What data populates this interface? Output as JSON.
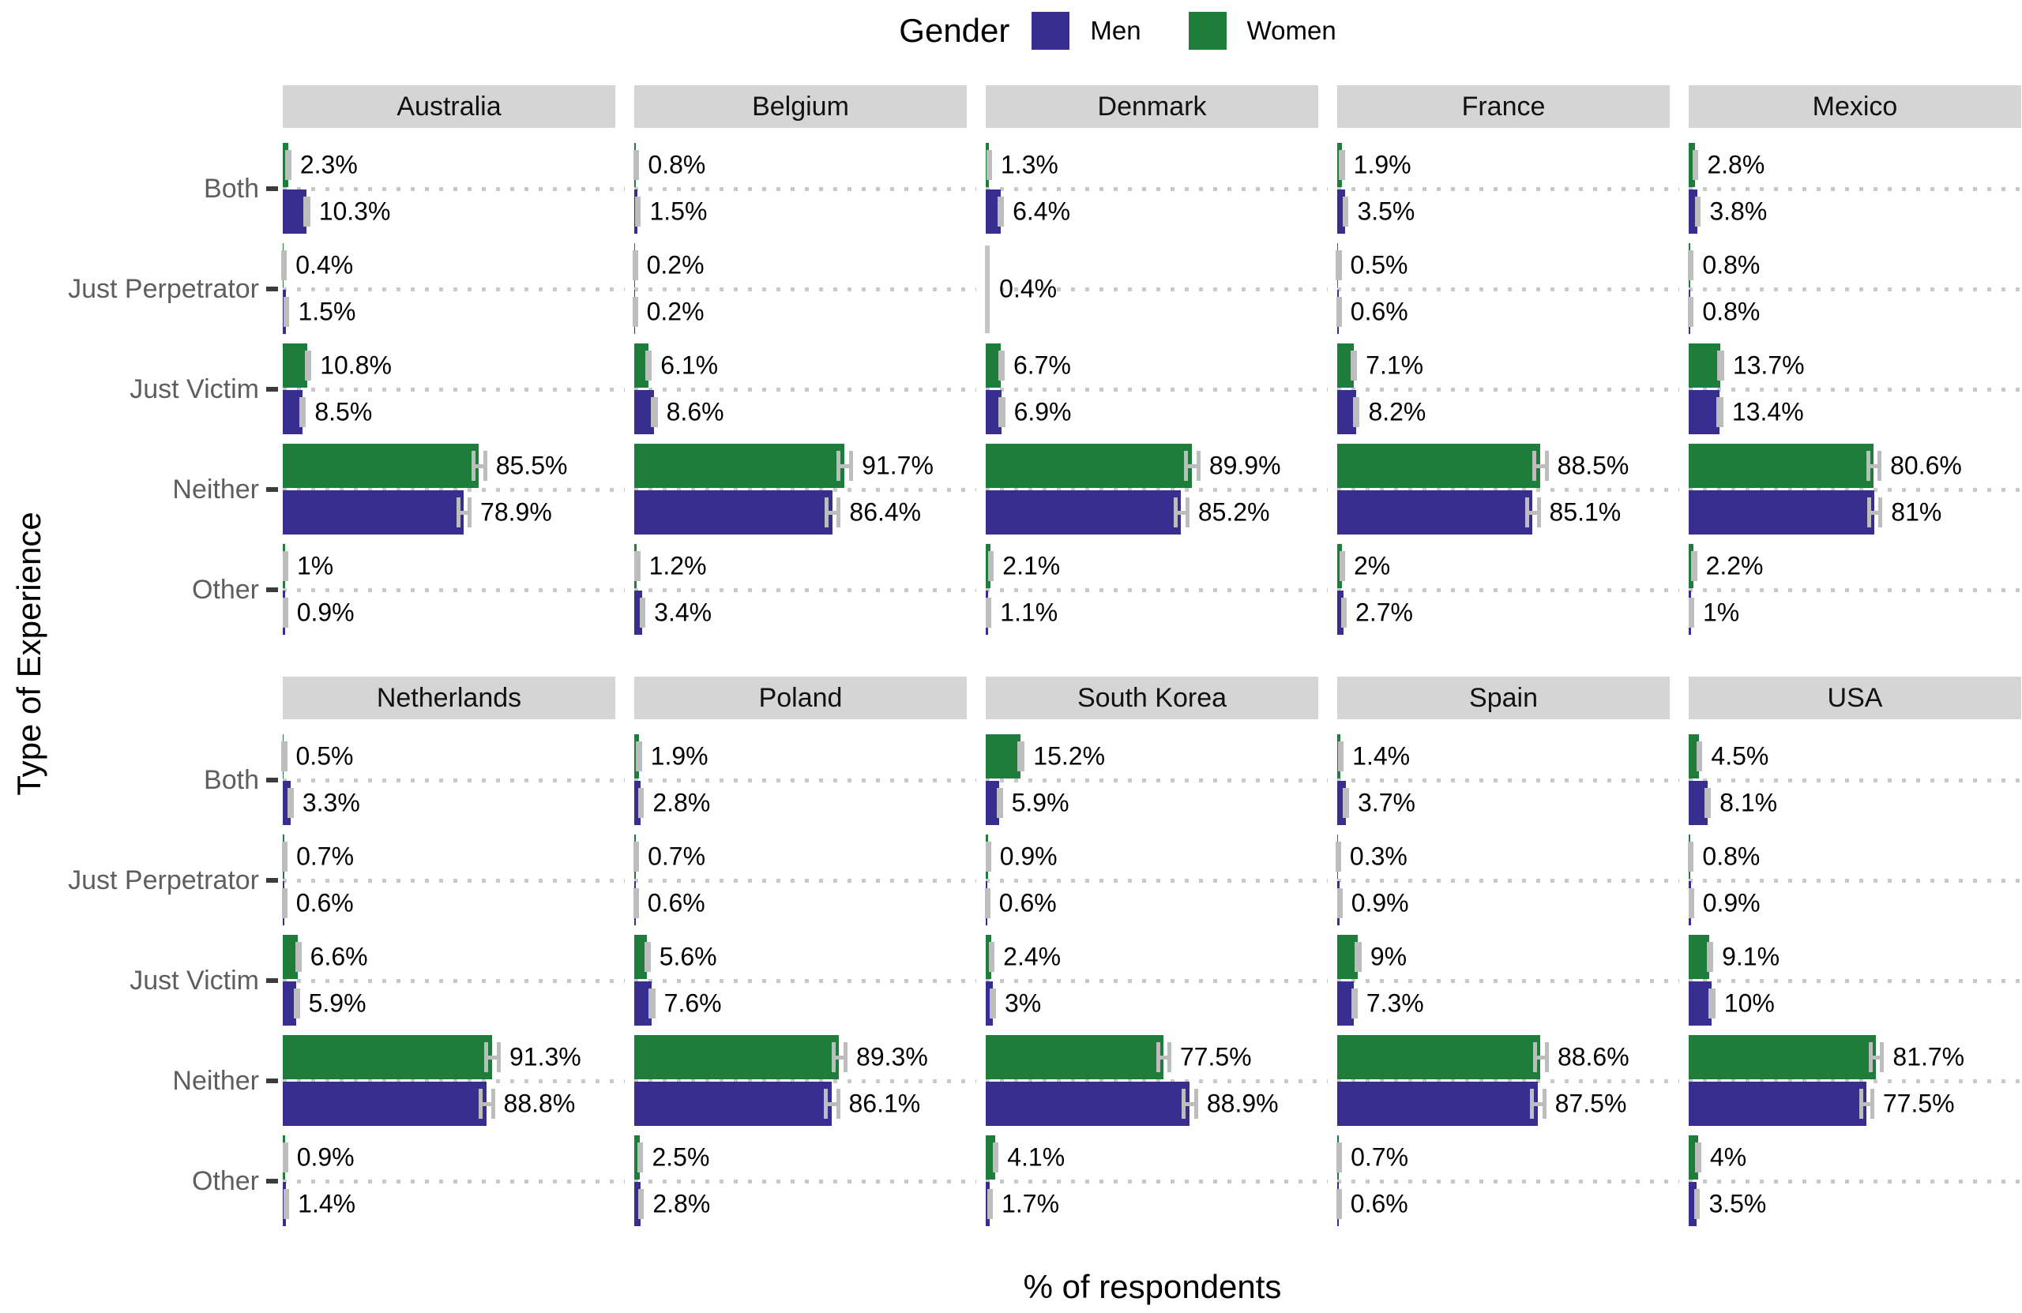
{
  "legend": {
    "title": "Gender",
    "items": [
      {
        "label": "Men",
        "color": "#372e90"
      },
      {
        "label": "Women",
        "color": "#1f7d3b"
      }
    ]
  },
  "axes": {
    "x_title": "% of respondents",
    "y_title": "Type of Experience"
  },
  "chart_data": {
    "type": "bar",
    "orientation": "horizontal",
    "legend_title": "Gender",
    "legend_position": "top",
    "grid": "dotted horizontal lines per category",
    "categories": [
      "Both",
      "Just Perpetrator",
      "Just Victim",
      "Neither",
      "Other"
    ],
    "series_names": [
      "Women",
      "Men"
    ],
    "colors": {
      "Men": "#372e90",
      "Women": "#1f7d3b",
      "error_bar": "#bdbdbd",
      "strip_bg": "#d5d5d5"
    },
    "xlabel": "% of respondents",
    "ylabel": "Type of Experience",
    "xlim": [
      0,
      145
    ],
    "value_unit": "%",
    "facet_rows": [
      [
        "Australia",
        "Belgium",
        "Denmark",
        "France",
        "Mexico"
      ],
      [
        "Netherlands",
        "Poland",
        "South Korea",
        "Spain",
        "USA"
      ]
    ],
    "facets": [
      {
        "country": "Australia",
        "values": {
          "Both": {
            "women": 2.3,
            "men": 10.3
          },
          "Just Perpetrator": {
            "women": 0.4,
            "men": 1.5
          },
          "Just Victim": {
            "women": 10.8,
            "men": 8.5
          },
          "Neither": {
            "women": 85.5,
            "men": 78.9
          },
          "Other": {
            "women": 1,
            "men": 0.9
          }
        }
      },
      {
        "country": "Belgium",
        "values": {
          "Both": {
            "women": 0.8,
            "men": 1.5
          },
          "Just Perpetrator": {
            "women": 0.2,
            "men": 0.2
          },
          "Just Victim": {
            "women": 6.1,
            "men": 8.6
          },
          "Neither": {
            "women": 91.7,
            "men": 86.4
          },
          "Other": {
            "women": 1.2,
            "men": 3.4
          }
        }
      },
      {
        "country": "Denmark",
        "values": {
          "Both": {
            "women": 1.3,
            "men": 6.4
          },
          "Just Perpetrator": {
            "combined": 0.4
          },
          "Just Victim": {
            "women": 6.7,
            "men": 6.9
          },
          "Neither": {
            "women": 89.9,
            "men": 85.2
          },
          "Other": {
            "women": 2.1,
            "men": 1.1
          }
        }
      },
      {
        "country": "France",
        "values": {
          "Both": {
            "women": 1.9,
            "men": 3.5
          },
          "Just Perpetrator": {
            "women": 0.5,
            "men": 0.6
          },
          "Just Victim": {
            "women": 7.1,
            "men": 8.2
          },
          "Neither": {
            "women": 88.5,
            "men": 85.1
          },
          "Other": {
            "women": 2,
            "men": 2.7
          }
        }
      },
      {
        "country": "Mexico",
        "values": {
          "Both": {
            "women": 2.8,
            "men": 3.8
          },
          "Just Perpetrator": {
            "women": 0.8,
            "men": 0.8
          },
          "Just Victim": {
            "women": 13.7,
            "men": 13.4
          },
          "Neither": {
            "women": 80.6,
            "men": 81
          },
          "Other": {
            "women": 2.2,
            "men": 1
          }
        }
      },
      {
        "country": "Netherlands",
        "values": {
          "Both": {
            "women": 0.5,
            "men": 3.3
          },
          "Just Perpetrator": {
            "women": 0.7,
            "men": 0.6
          },
          "Just Victim": {
            "women": 6.6,
            "men": 5.9
          },
          "Neither": {
            "women": 91.3,
            "men": 88.8
          },
          "Other": {
            "women": 0.9,
            "men": 1.4
          }
        }
      },
      {
        "country": "Poland",
        "values": {
          "Both": {
            "women": 1.9,
            "men": 2.8
          },
          "Just Perpetrator": {
            "women": 0.7,
            "men": 0.6
          },
          "Just Victim": {
            "women": 5.6,
            "men": 7.6
          },
          "Neither": {
            "women": 89.3,
            "men": 86.1
          },
          "Other": {
            "women": 2.5,
            "men": 2.8
          }
        }
      },
      {
        "country": "South Korea",
        "values": {
          "Both": {
            "women": 15.2,
            "men": 5.9
          },
          "Just Perpetrator": {
            "women": 0.9,
            "men": 0.6
          },
          "Just Victim": {
            "women": 2.4,
            "men": 3
          },
          "Neither": {
            "women": 77.5,
            "men": 88.9
          },
          "Other": {
            "women": 4.1,
            "men": 1.7
          }
        }
      },
      {
        "country": "Spain",
        "values": {
          "Both": {
            "women": 1.4,
            "men": 3.7
          },
          "Just Perpetrator": {
            "women": 0.3,
            "men": 0.9
          },
          "Just Victim": {
            "women": 9,
            "men": 7.3
          },
          "Neither": {
            "women": 88.6,
            "men": 87.5
          },
          "Other": {
            "women": 0.7,
            "men": 0.6
          }
        }
      },
      {
        "country": "USA",
        "values": {
          "Both": {
            "women": 4.5,
            "men": 8.1
          },
          "Just Perpetrator": {
            "women": 0.8,
            "men": 0.9
          },
          "Just Victim": {
            "women": 9.1,
            "men": 10
          },
          "Neither": {
            "women": 81.7,
            "men": 77.5
          },
          "Other": {
            "women": 4,
            "men": 3.5
          }
        }
      }
    ]
  }
}
